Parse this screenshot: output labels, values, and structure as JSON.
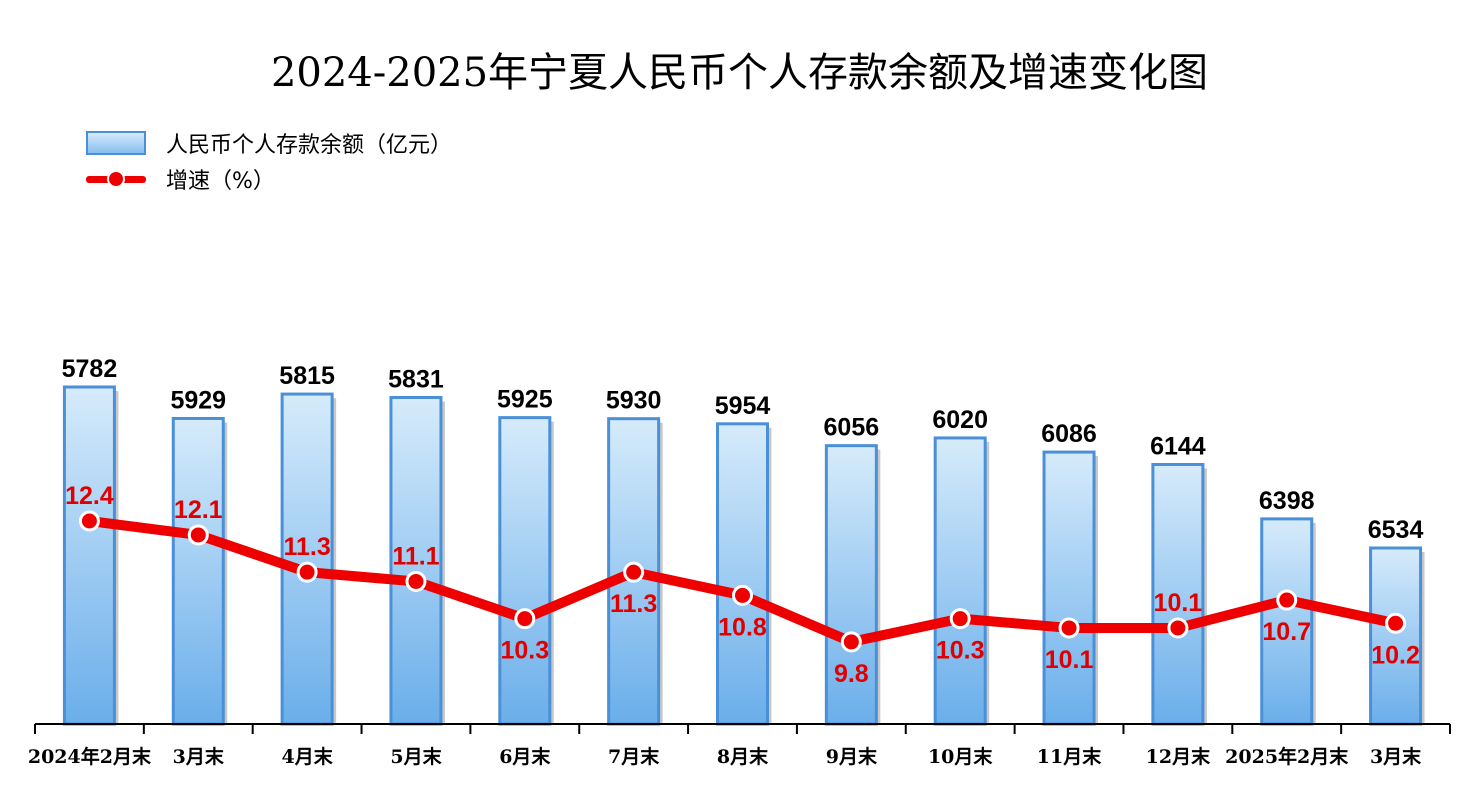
{
  "chart_data": {
    "type": "bar+line",
    "title": "2024-2025年宁夏人民币个人存款余额及增速变化图",
    "categories": [
      "2024年2月末",
      "3月末",
      "4月末",
      "5月末",
      "6月末",
      "7月末",
      "8月末",
      "9月末",
      "10月末",
      "11月末",
      "12月末",
      "2025年2月末",
      "3月末"
    ],
    "series": [
      {
        "name": "人民币个人存款余额（亿元）",
        "type": "bar",
        "values": [
          5782,
          5929,
          5815,
          5831,
          5925,
          5930,
          5954,
          6056,
          6020,
          6086,
          6144,
          6398,
          6534
        ]
      },
      {
        "name": "增速（%）",
        "type": "line",
        "values": [
          12.4,
          12.1,
          11.3,
          11.1,
          10.3,
          11.3,
          10.8,
          9.8,
          10.3,
          10.1,
          10.1,
          10.7,
          10.2
        ]
      }
    ],
    "legend_placement": "top-left",
    "grid": false,
    "colors": {
      "bar_top": "#d6ebfb",
      "bar_bottom": "#6aaeea",
      "bar_border": "#4a90d9",
      "line": "#ee0000"
    }
  }
}
